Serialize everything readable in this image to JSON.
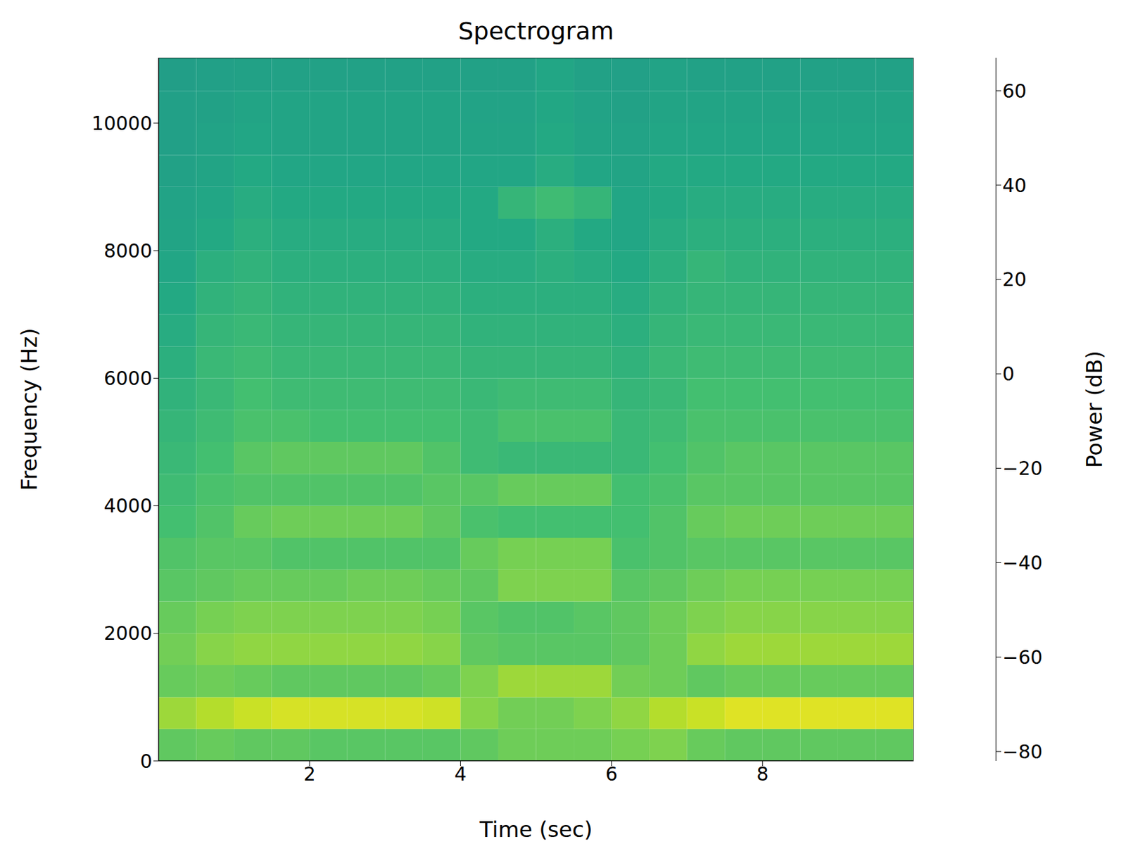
{
  "chart_data": {
    "type": "heatmap",
    "title": "Spectrogram",
    "x_label": "Time (sec)",
    "y_label": "Frequency (Hz)",
    "xlim": [
      0,
      10
    ],
    "ylim": [
      0,
      11025
    ],
    "xticks": [
      2,
      4,
      6,
      8
    ],
    "yticks": [
      0,
      2000,
      4000,
      6000,
      8000,
      10000
    ],
    "x": [
      0,
      0.5,
      1,
      1.5,
      2,
      2.5,
      3,
      3.5,
      4,
      4.5,
      5,
      5.5,
      6,
      6.5,
      7,
      7.5,
      8,
      8.5,
      9,
      9.5,
      10
    ],
    "y": [
      0,
      500,
      1000,
      1500,
      2000,
      2500,
      3000,
      3500,
      4000,
      4500,
      5000,
      5500,
      6000,
      6500,
      7000,
      7500,
      8000,
      8500,
      9000,
      9500,
      10000,
      10500,
      11025
    ],
    "cells": [
      [
        30,
        32,
        30,
        30,
        28,
        28,
        28,
        28,
        30,
        34,
        34,
        34,
        36,
        38,
        32,
        30,
        30,
        30,
        30,
        30
      ],
      [
        45,
        50,
        55,
        58,
        58,
        58,
        58,
        56,
        40,
        35,
        35,
        38,
        42,
        50,
        55,
        60,
        60,
        60,
        60,
        60
      ],
      [
        32,
        34,
        32,
        30,
        30,
        30,
        30,
        32,
        38,
        45,
        45,
        45,
        35,
        34,
        30,
        32,
        32,
        32,
        32,
        32
      ],
      [
        35,
        40,
        42,
        42,
        42,
        42,
        42,
        40,
        30,
        28,
        28,
        28,
        30,
        34,
        42,
        45,
        45,
        45,
        45,
        45
      ],
      [
        32,
        36,
        38,
        38,
        38,
        38,
        38,
        36,
        28,
        26,
        26,
        28,
        30,
        34,
        38,
        40,
        40,
        40,
        40,
        40
      ],
      [
        28,
        30,
        32,
        32,
        32,
        34,
        34,
        32,
        30,
        38,
        38,
        38,
        28,
        30,
        34,
        36,
        36,
        36,
        36,
        36
      ],
      [
        26,
        28,
        28,
        26,
        26,
        26,
        26,
        26,
        32,
        36,
        36,
        36,
        24,
        26,
        28,
        28,
        28,
        28,
        28,
        28
      ],
      [
        22,
        26,
        32,
        34,
        34,
        34,
        34,
        30,
        24,
        22,
        22,
        22,
        22,
        26,
        32,
        34,
        34,
        34,
        34,
        34
      ],
      [
        20,
        24,
        26,
        26,
        26,
        26,
        26,
        28,
        28,
        32,
        32,
        32,
        22,
        24,
        28,
        28,
        28,
        28,
        28,
        28
      ],
      [
        18,
        22,
        28,
        30,
        30,
        30,
        30,
        26,
        20,
        18,
        18,
        18,
        18,
        22,
        26,
        28,
        28,
        28,
        28,
        28
      ],
      [
        16,
        20,
        24,
        24,
        22,
        22,
        22,
        22,
        20,
        24,
        24,
        24,
        18,
        20,
        24,
        24,
        24,
        24,
        24,
        24
      ],
      [
        14,
        18,
        22,
        20,
        20,
        20,
        20,
        20,
        18,
        20,
        20,
        20,
        16,
        18,
        22,
        22,
        22,
        22,
        22,
        22
      ],
      [
        12,
        18,
        20,
        18,
        18,
        18,
        18,
        18,
        16,
        16,
        16,
        16,
        14,
        18,
        20,
        20,
        20,
        20,
        20,
        20
      ],
      [
        10,
        16,
        18,
        16,
        16,
        16,
        16,
        16,
        14,
        14,
        14,
        14,
        12,
        16,
        18,
        18,
        18,
        18,
        18,
        18
      ],
      [
        8,
        14,
        16,
        14,
        14,
        14,
        14,
        14,
        12,
        12,
        12,
        12,
        10,
        14,
        16,
        16,
        16,
        16,
        16,
        16
      ],
      [
        6,
        12,
        14,
        12,
        12,
        12,
        12,
        12,
        10,
        10,
        12,
        10,
        8,
        12,
        16,
        14,
        14,
        14,
        14,
        14
      ],
      [
        5,
        8,
        12,
        10,
        10,
        10,
        10,
        10,
        8,
        8,
        12,
        8,
        6,
        10,
        12,
        12,
        12,
        12,
        12,
        12
      ],
      [
        4,
        6,
        10,
        8,
        8,
        8,
        8,
        8,
        8,
        16,
        20,
        16,
        6,
        8,
        10,
        10,
        10,
        10,
        10,
        10
      ],
      [
        3,
        5,
        8,
        6,
        6,
        6,
        6,
        6,
        6,
        6,
        10,
        6,
        5,
        8,
        8,
        8,
        8,
        8,
        8,
        8
      ],
      [
        2,
        4,
        6,
        5,
        5,
        5,
        5,
        5,
        5,
        5,
        8,
        5,
        4,
        6,
        6,
        6,
        6,
        6,
        6,
        6
      ],
      [
        2,
        3,
        5,
        5,
        5,
        5,
        5,
        5,
        4,
        4,
        7,
        4,
        3,
        5,
        5,
        5,
        5,
        5,
        5,
        5
      ],
      [
        1,
        2,
        3,
        3,
        3,
        3,
        3,
        3,
        3,
        3,
        6,
        3,
        2,
        4,
        3,
        3,
        3,
        3,
        3,
        3
      ]
    ],
    "colorbar": {
      "label": "Power (dB)",
      "range": [
        -82,
        67
      ],
      "ticks": [
        {
          "value": -80,
          "label": "−80"
        },
        {
          "value": -60,
          "label": "−60"
        },
        {
          "value": -40,
          "label": "−40"
        },
        {
          "value": -20,
          "label": "−20"
        },
        0,
        20,
        40,
        60
      ]
    }
  }
}
